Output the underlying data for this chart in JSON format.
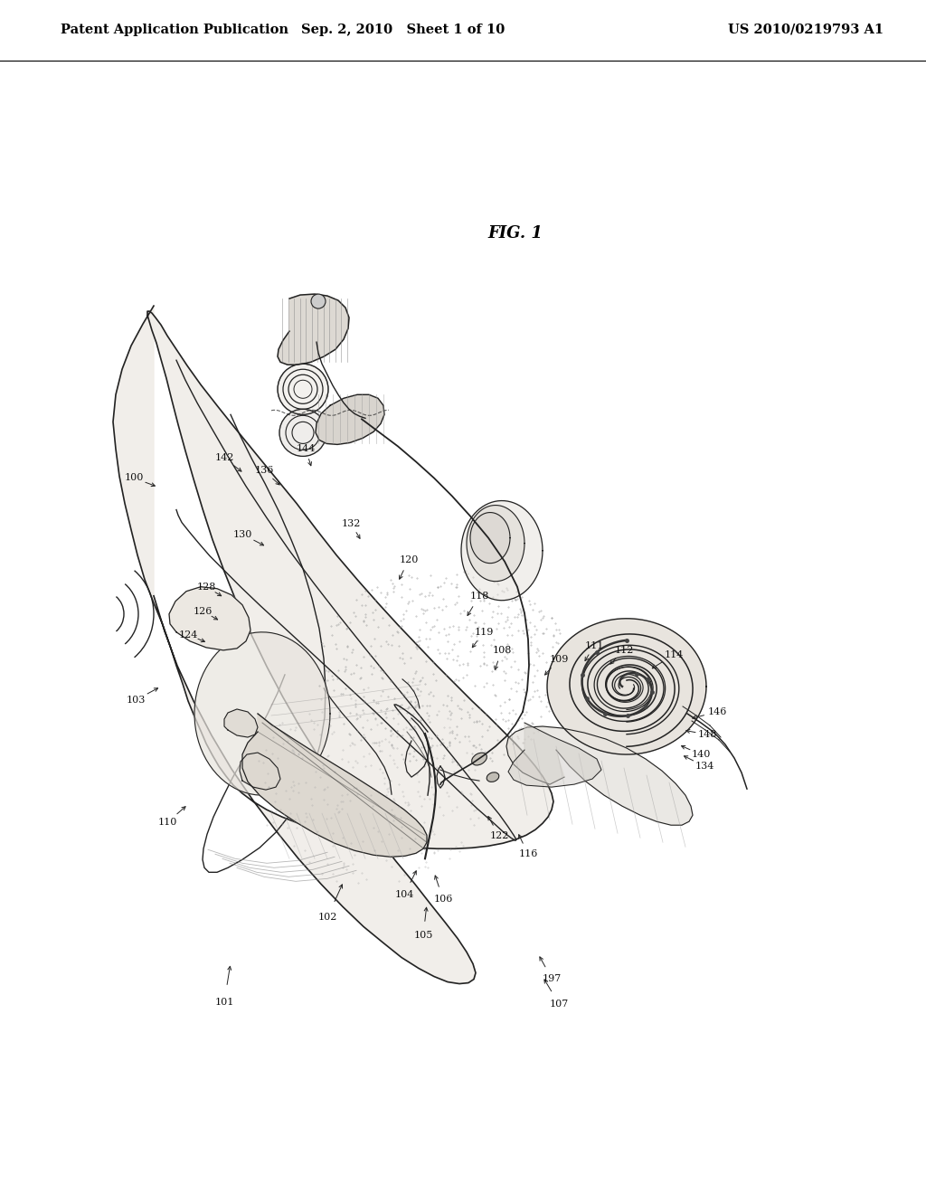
{
  "title_left": "Patent Application Publication",
  "title_mid": "Sep. 2, 2010   Sheet 1 of 10",
  "title_right": "US 2010/0219793 A1",
  "fig_label": "FIG. 1",
  "bg_color": "#ffffff",
  "header_font_size": 10.5,
  "line_color": "#222222",
  "label_fontsize": 8.0,
  "fig_label_fontsize": 13
}
